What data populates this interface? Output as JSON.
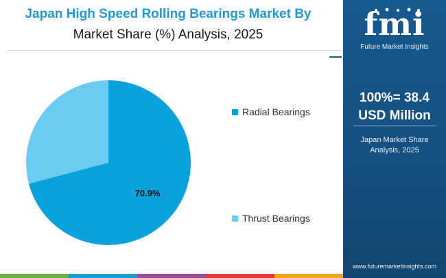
{
  "title": {
    "line1": "Japan High Speed Rolling Bearings Market By",
    "line2": "Market Share (%) Analysis, 2025"
  },
  "chart_data": {
    "type": "pie",
    "categories": [
      "Radial Bearings",
      "Thrust Bearings"
    ],
    "values": [
      70.9,
      29.1
    ],
    "data_labels": [
      "70.9%",
      ""
    ],
    "colors": [
      "#0aa2dc",
      "#6ccbf0"
    ],
    "legend_position": "right"
  },
  "side_panel": {
    "logo_text": "fmi",
    "logo_subtitle": "Future Market Insights",
    "total_line1": "100%= 38.4",
    "total_line2": "USD Million",
    "subtitle_line1": "Japan Market Share",
    "subtitle_line2": "Analysis, 2025",
    "url": "www.futuremarketinsights.com",
    "background_color": "#175a8f"
  },
  "bottom_bar_colors": [
    "#6cb33f",
    "#1e9bd7",
    "#9b4d97",
    "#e53935",
    "#f2a31b"
  ]
}
